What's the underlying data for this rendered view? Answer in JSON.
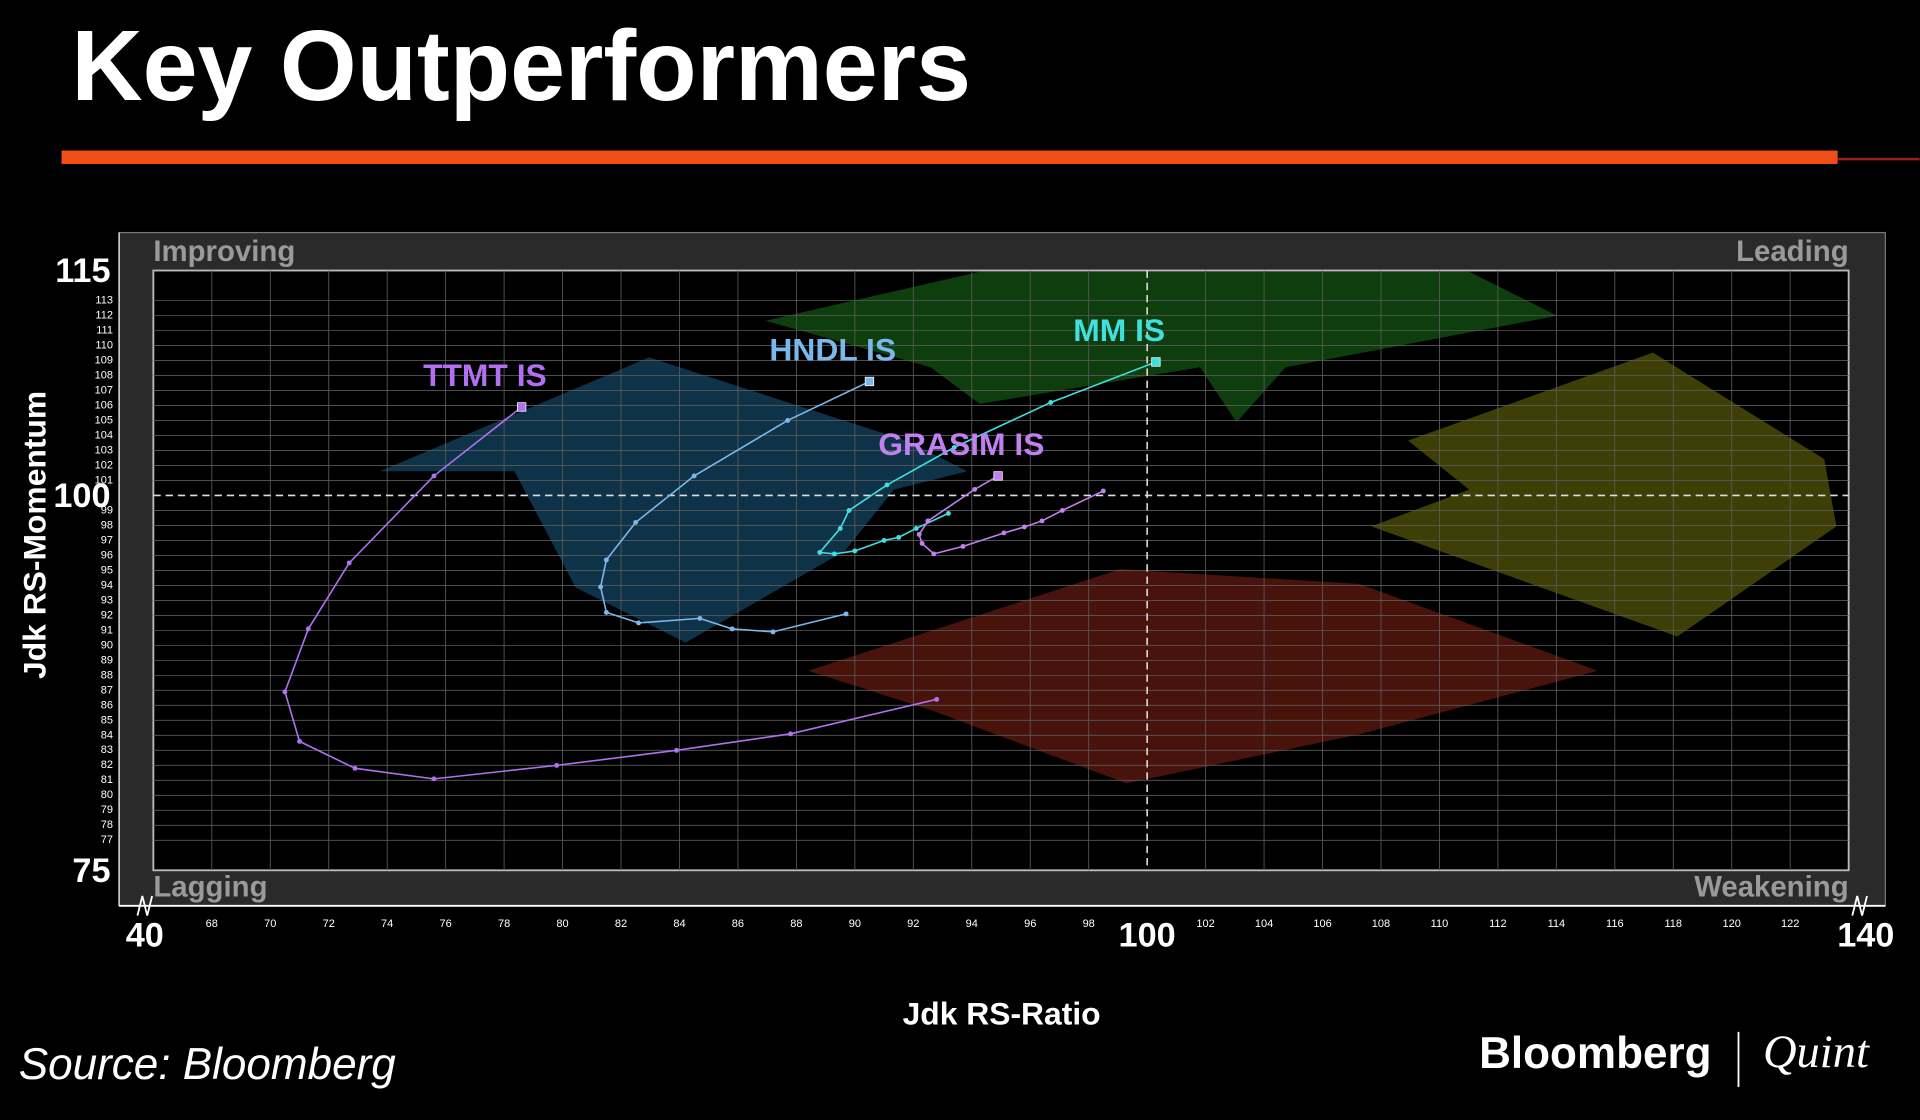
{
  "chart_data": {
    "type": "line",
    "title": "Key Outperformers",
    "x_label": "Jdk RS-Ratio",
    "y_label": "Jdk RS-Momentum",
    "quadrant_labels": {
      "top_left": "Improving",
      "top_right": "Leading",
      "bottom_left": "Lagging",
      "bottom_right": "Weakening"
    },
    "x_break_labels": [
      "40",
      "140"
    ],
    "xlim": [
      66,
      124
    ],
    "ylim": [
      75,
      115
    ],
    "xticks": [
      68,
      70,
      72,
      74,
      76,
      78,
      80,
      82,
      84,
      86,
      88,
      90,
      92,
      94,
      96,
      98,
      102,
      104,
      106,
      108,
      110,
      112,
      114,
      116,
      118,
      120,
      122
    ],
    "xticks_major": [
      100
    ],
    "yticks": [
      77,
      78,
      79,
      80,
      81,
      82,
      83,
      84,
      85,
      86,
      87,
      88,
      89,
      90,
      91,
      92,
      93,
      94,
      95,
      96,
      97,
      98,
      99,
      101,
      102,
      103,
      104,
      105,
      106,
      107,
      108,
      109,
      110,
      111,
      112,
      113
    ],
    "yticks_major": [
      75,
      100,
      115
    ],
    "grid": true,
    "series": [
      {
        "name": "TTMT IS",
        "color": "#b070f0",
        "x": [
          92.8,
          87.8,
          83.9,
          79.8,
          75.6,
          72.9,
          71.0,
          70.5,
          71.3,
          72.7,
          75.6,
          78.6
        ],
        "values": [
          86.4,
          84.1,
          83.0,
          82.0,
          81.1,
          81.8,
          83.6,
          86.9,
          91.1,
          95.5,
          101.3,
          105.9
        ]
      },
      {
        "name": "HNDL IS",
        "color": "#7ab8ec",
        "x": [
          89.7,
          87.2,
          85.8,
          84.7,
          82.6,
          81.5,
          81.3,
          81.5,
          82.5,
          84.5,
          87.7,
          90.5
        ],
        "values": [
          92.1,
          90.9,
          91.1,
          91.8,
          91.5,
          92.2,
          93.9,
          95.7,
          98.2,
          101.3,
          105.0,
          107.6
        ]
      },
      {
        "name": "MM IS",
        "color": "#40e0e0",
        "x": [
          93.2,
          92.1,
          91.5,
          91.0,
          90.0,
          89.3,
          88.8,
          89.5,
          89.8,
          91.1,
          93.4,
          96.7,
          100.3
        ],
        "values": [
          98.8,
          97.8,
          97.2,
          97.0,
          96.3,
          96.1,
          96.2,
          97.8,
          99.0,
          100.7,
          103.2,
          106.2,
          108.9
        ]
      },
      {
        "name": "GRASIM IS",
        "color": "#c080f0",
        "x": [
          98.5,
          97.1,
          96.4,
          95.8,
          95.1,
          93.7,
          92.7,
          92.3,
          92.2,
          92.5,
          94.1,
          94.9
        ],
        "values": [
          100.3,
          99.0,
          98.3,
          97.9,
          97.5,
          96.6,
          96.1,
          96.8,
          97.4,
          98.3,
          100.4,
          101.3
        ]
      }
    ],
    "source": "Source: Bloomberg",
    "brand": [
      "Bloomberg",
      "Quint"
    ]
  }
}
